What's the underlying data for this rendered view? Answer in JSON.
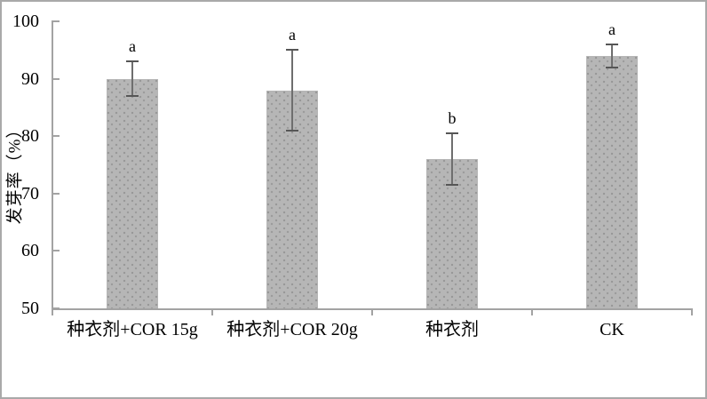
{
  "chart_data": {
    "type": "bar",
    "title": "",
    "categories": [
      "种衣剂+COR 15g",
      "种衣剂+COR 20g",
      "种衣剂",
      "CK"
    ],
    "values": [
      90,
      88,
      76,
      94
    ],
    "error_plus": [
      3,
      7,
      4.5,
      2
    ],
    "error_minus": [
      3,
      7,
      4.5,
      2
    ],
    "sig_letters": [
      "a",
      "a",
      "b",
      "a"
    ],
    "xlabel": "",
    "ylabel": "发芽率（%）",
    "ylim": [
      50,
      100
    ],
    "yticks": [
      50,
      60,
      70,
      80,
      90,
      100
    ],
    "grid": false,
    "legend": false,
    "colors": {
      "bar_fill": "#b6b6b6",
      "bar_dots": "#9a9a9a",
      "error_bar": "#5f5f5f",
      "axis": "#a3a3a3",
      "text": "#000000",
      "frame_border": "#a9a9a9",
      "background": "#ffffff"
    }
  }
}
